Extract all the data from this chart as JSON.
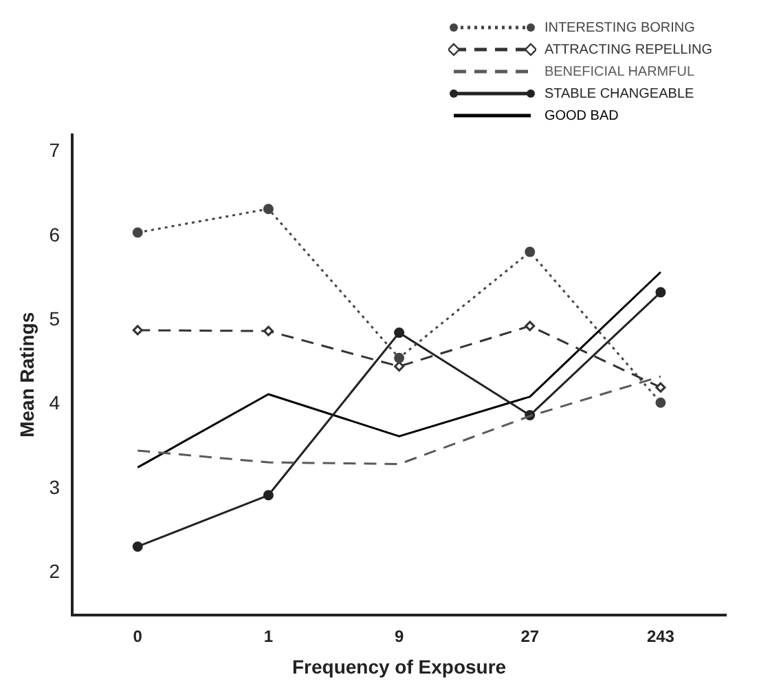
{
  "chart_data": {
    "type": "line",
    "xlabel": "Frequency of Exposure",
    "ylabel": "Mean Ratings",
    "categories": [
      "0",
      "1",
      "9",
      "27",
      "243"
    ],
    "ylim": [
      1.5,
      7.2
    ],
    "yticks": [
      2,
      3,
      4,
      5,
      6,
      7
    ],
    "grid": false,
    "legend": "top right",
    "series": [
      {
        "name": "INTERESTING BORING",
        "color": "#444444",
        "line_style": "dotted",
        "marker": "circle",
        "values": [
          6.04,
          6.32,
          4.55,
          5.81,
          4.02
        ]
      },
      {
        "name": "ATTRACTING REPELLING",
        "color": "#333333",
        "line_style": "dashed",
        "marker": "diamond",
        "values": [
          4.88,
          4.87,
          4.45,
          4.93,
          4.2
        ]
      },
      {
        "name": "BENEFICIAL HARMFUL",
        "color": "#5a5a5a",
        "line_style": "dashed",
        "marker": "none",
        "values": [
          3.45,
          3.31,
          3.29,
          3.86,
          4.33
        ]
      },
      {
        "name": "STABLE CHANGEABLE",
        "color": "#222222",
        "line_style": "solid",
        "marker": "circle",
        "values": [
          2.31,
          2.92,
          4.85,
          3.87,
          5.33
        ]
      },
      {
        "name": "GOOD BAD",
        "color": "#000000",
        "line_style": "solid",
        "marker": "none",
        "values": [
          3.25,
          4.12,
          3.62,
          4.09,
          5.57
        ]
      }
    ]
  }
}
